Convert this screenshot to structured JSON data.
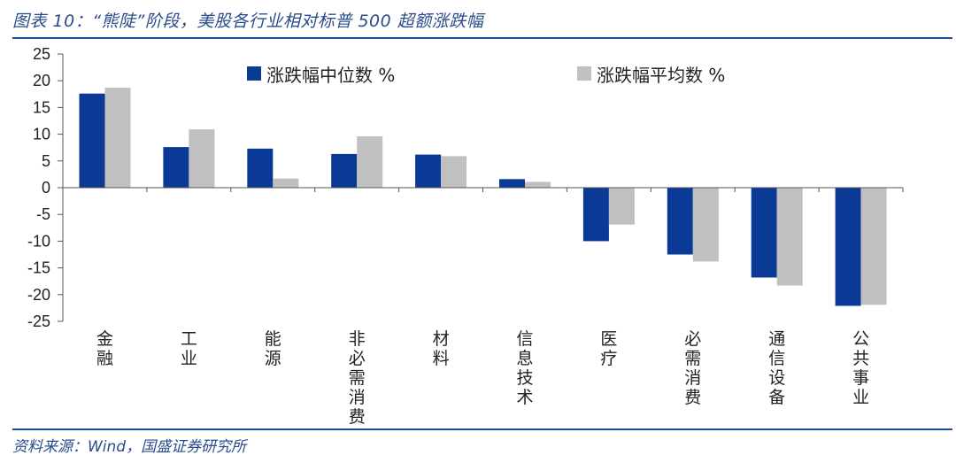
{
  "figure": {
    "title": "图表 10：“熊陡”阶段，美股各行业相对标普 500 超额涨跌幅",
    "source": "资料来源：Wind，国盛证券研究所"
  },
  "colors": {
    "median": "#0b3a96",
    "mean": "#c0c0c0",
    "axis": "#555555"
  },
  "chart_data": {
    "type": "bar",
    "categories": [
      "金融",
      "工业",
      "能源",
      "非必需消费",
      "材料",
      "信息技术",
      "医疗",
      "必需消费",
      "通信设备",
      "公共事业"
    ],
    "series": [
      {
        "name": "涨跌幅中位数 %",
        "values": [
          17.6,
          7.6,
          7.3,
          6.3,
          6.2,
          1.6,
          -10.0,
          -12.5,
          -16.8,
          -22.1
        ]
      },
      {
        "name": "涨跌幅平均数 %",
        "values": [
          18.7,
          10.9,
          1.7,
          9.6,
          5.9,
          1.1,
          -6.9,
          -13.8,
          -18.3,
          -21.9
        ]
      }
    ],
    "yticks": [
      25,
      20,
      15,
      10,
      5,
      0,
      -5,
      -10,
      -15,
      -20,
      -25
    ],
    "ylim": [
      -25,
      25
    ],
    "grid": false,
    "legend_position": "top"
  }
}
